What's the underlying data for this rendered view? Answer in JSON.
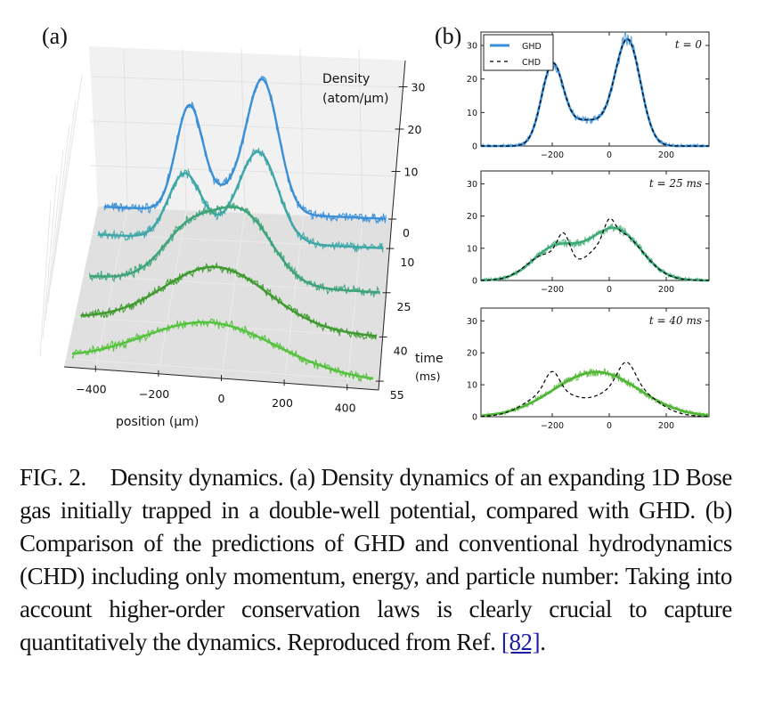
{
  "figure": {
    "panel_a_label": "(a)",
    "panel_b_label": "(b)"
  },
  "caption": {
    "prefix": "FIG. 2.",
    "text": "Density dynamics. (a) Density dynamics of an expanding 1D Bose gas initially trapped in a double-well potential, compared with GHD. (b) Comparison of the predictions of GHD and conventional hydrodynamics (CHD) including only momentum, energy, and particle number: Taking into account higher-order conservation laws is clearly crucial to capture quantitatively the dynamics. Reproduced from Ref.",
    "ref": "[82]",
    "suffix": "."
  },
  "chart_data": [
    {
      "id": "panel-a",
      "type": "line",
      "projection": "3d-waterfall",
      "xlabel": "position (μm)",
      "ylabel": "time (ms)",
      "zlabel": "Density (atom/μm)",
      "xlim": [
        -500,
        500
      ],
      "xticks": [
        -400,
        -200,
        0,
        200,
        400
      ],
      "yticks": [
        0,
        10,
        25,
        40,
        55
      ],
      "zticks": [
        10,
        20,
        30
      ],
      "zlim": [
        0,
        35
      ],
      "series": [
        {
          "name": "t=0 ms",
          "time": 0,
          "color": "#3a8fd6",
          "components": [
            {
              "a": 24,
              "mu": -190,
              "s": 45
            },
            {
              "a": 31,
              "mu": 60,
              "s": 55
            },
            {
              "a": 4,
              "mu": -70,
              "s": 70
            }
          ]
        },
        {
          "name": "t=10 ms",
          "time": 10,
          "color": "#3fa6a8",
          "components": [
            {
              "a": 15,
              "mu": -190,
              "s": 55
            },
            {
              "a": 21,
              "mu": 60,
              "s": 65
            },
            {
              "a": 2,
              "mu": -70,
              "s": 70
            }
          ]
        },
        {
          "name": "t=25 ms",
          "time": 25,
          "color": "#3ea37a",
          "components": [
            {
              "a": 12,
              "mu": -150,
              "s": 90
            },
            {
              "a": 16,
              "mu": 30,
              "s": 95
            }
          ]
        },
        {
          "name": "t=40 ms",
          "time": 40,
          "color": "#3e9a2f",
          "components": [
            {
              "a": 14,
              "mu": -40,
              "s": 170
            }
          ]
        },
        {
          "name": "t=55 ms",
          "time": 55,
          "color": "#55c23e",
          "components": [
            {
              "a": 11,
              "mu": -40,
              "s": 210
            }
          ]
        }
      ]
    },
    {
      "id": "panel-b-t0",
      "type": "line",
      "annotation": "t = 0",
      "xlim": [
        -450,
        350
      ],
      "ylim": [
        0,
        34
      ],
      "xticks": [
        -200,
        0,
        200
      ],
      "yticks": [
        0,
        10,
        20,
        30
      ],
      "legend": {
        "position": "top-left",
        "entries": [
          "GHD",
          "CHD"
        ]
      },
      "series": [
        {
          "name": "GHD",
          "color": "#3a8fd6",
          "style": "solid",
          "components": [
            {
              "a": 23,
              "mu": -200,
              "s": 38
            },
            {
              "a": 31,
              "mu": 65,
              "s": 45
            },
            {
              "a": 7.5,
              "mu": -80,
              "s": 70
            }
          ]
        },
        {
          "name": "CHD",
          "color": "#000000",
          "style": "dashed",
          "components": [
            {
              "a": 23,
              "mu": -200,
              "s": 38
            },
            {
              "a": 31,
              "mu": 65,
              "s": 45
            },
            {
              "a": 7.5,
              "mu": -80,
              "s": 70
            }
          ]
        }
      ]
    },
    {
      "id": "panel-b-t25",
      "type": "line",
      "annotation": "t = 25 ms",
      "xlim": [
        -450,
        350
      ],
      "ylim": [
        0,
        34
      ],
      "xticks": [
        -200,
        0,
        200
      ],
      "yticks": [
        0,
        10,
        20,
        30
      ],
      "series": [
        {
          "name": "GHD",
          "color": "#3eaa78",
          "style": "solid",
          "components": [
            {
              "a": 10,
              "mu": -190,
              "s": 80
            },
            {
              "a": 16,
              "mu": 20,
              "s": 90
            }
          ]
        },
        {
          "name": "CHD",
          "color": "#000000",
          "style": "dashed",
          "components": [
            {
              "a": 8,
              "mu": -220,
              "s": 70
            },
            {
              "a": 8,
              "mu": -160,
              "s": 22
            },
            {
              "a": 15,
              "mu": 30,
              "s": 85
            },
            {
              "a": 5,
              "mu": 0,
              "s": 18
            }
          ]
        }
      ]
    },
    {
      "id": "panel-b-t40",
      "type": "line",
      "annotation": "t = 40 ms",
      "xlim": [
        -450,
        350
      ],
      "ylim": [
        0,
        34
      ],
      "xticks": [
        -200,
        0,
        200
      ],
      "yticks": [
        0,
        10,
        20,
        30
      ],
      "series": [
        {
          "name": "GHD",
          "color": "#4fb534",
          "style": "solid",
          "components": [
            {
              "a": 14,
              "mu": -45,
              "s": 150
            }
          ]
        },
        {
          "name": "CHD",
          "color": "#000000",
          "style": "dashed",
          "components": [
            {
              "a": 8,
              "mu": -200,
              "s": 85
            },
            {
              "a": 6,
              "mu": -200,
              "s": 25
            },
            {
              "a": 10,
              "mu": 60,
              "s": 90
            },
            {
              "a": 7,
              "mu": 60,
              "s": 30
            }
          ]
        }
      ]
    }
  ]
}
